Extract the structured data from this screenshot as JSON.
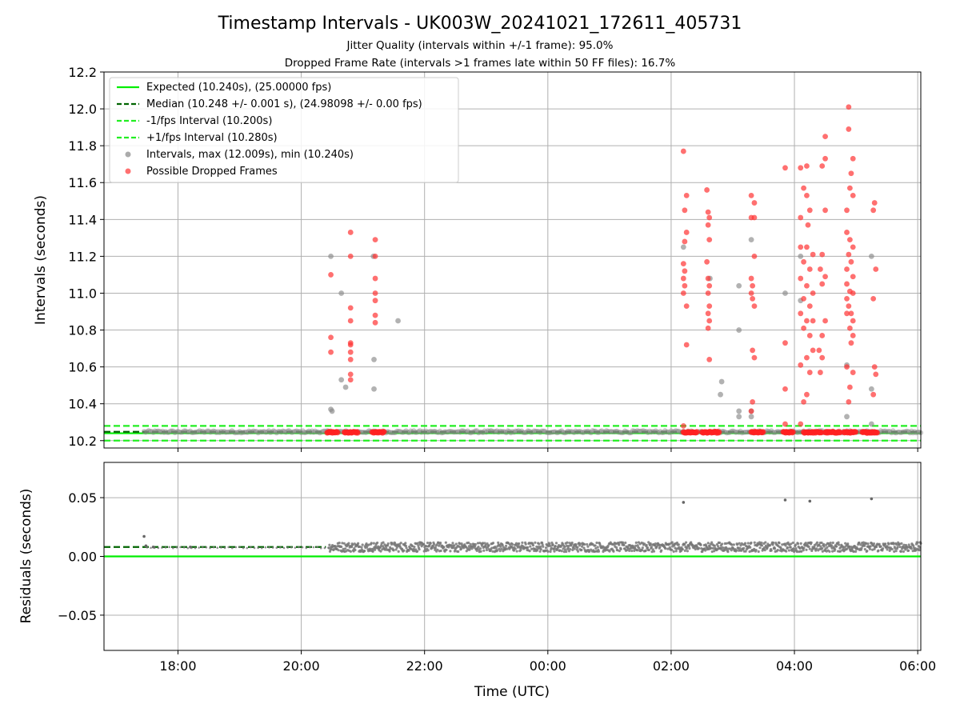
{
  "figure": {
    "title": "Timestamp Intervals - UK003W_20241021_172611_405731",
    "subtitle1": "Jitter Quality (intervals within +/-1 frame): 95.0%",
    "subtitle2": "Dropped Frame Rate (intervals >1 frames late within 50 FF files): 16.7%",
    "xlabel": "Time (UTC)"
  },
  "chart_data": [
    {
      "type": "scatter",
      "ylabel": "Intervals (seconds)",
      "ylim": [
        10.16,
        12.2
      ],
      "xlim_hours": [
        16.8,
        30.05
      ],
      "yticks": [
        {
          "v": 10.2,
          "label": "10.2"
        },
        {
          "v": 10.4,
          "label": "10.4"
        },
        {
          "v": 10.6,
          "label": "10.6"
        },
        {
          "v": 10.8,
          "label": "10.8"
        },
        {
          "v": 11.0,
          "label": "11.0"
        },
        {
          "v": 11.2,
          "label": "11.2"
        },
        {
          "v": 11.4,
          "label": "11.4"
        },
        {
          "v": 11.6,
          "label": "11.6"
        },
        {
          "v": 11.8,
          "label": "11.8"
        },
        {
          "v": 12.0,
          "label": "12.0"
        },
        {
          "v": 12.2,
          "label": "12.2"
        }
      ],
      "grid": true,
      "legend_position": "top-left",
      "lines": [
        {
          "name": "Expected (10.240s), (25.00000 fps)",
          "y": 10.24,
          "color": "#00ee00",
          "dash": "solid"
        },
        {
          "name": "Median (10.248 +/- 0.001 s), (24.98098 +/- 0.00 fps)",
          "y": 10.248,
          "color": "#006400",
          "dash": "dashed"
        },
        {
          "name": "-1/fps Interval (10.200s)",
          "y": 10.2,
          "color": "#22ee22",
          "dash": "dashed"
        },
        {
          "name": "+1/fps Interval (10.280s)",
          "y": 10.28,
          "color": "#22ee22",
          "dash": "dashed"
        }
      ],
      "series": [
        {
          "name": "Intervals, max (12.009s), min (10.240s)",
          "color": "#888888",
          "points": [
            [
              20.48,
              11.2
            ],
            [
              20.48,
              10.37
            ],
            [
              20.5,
              10.36
            ],
            [
              20.65,
              11.0
            ],
            [
              20.65,
              10.53
            ],
            [
              20.72,
              10.49
            ],
            [
              21.17,
              11.2
            ],
            [
              21.18,
              10.64
            ],
            [
              21.18,
              10.48
            ],
            [
              21.57,
              10.85
            ],
            [
              26.2,
              11.25
            ],
            [
              26.63,
              11.08
            ],
            [
              26.82,
              10.52
            ],
            [
              26.8,
              10.45
            ],
            [
              27.1,
              11.04
            ],
            [
              27.1,
              10.8
            ],
            [
              27.1,
              10.36
            ],
            [
              27.1,
              10.33
            ],
            [
              27.3,
              11.29
            ],
            [
              27.3,
              10.36
            ],
            [
              27.3,
              10.33
            ],
            [
              27.85,
              11.0
            ],
            [
              28.1,
              11.2
            ],
            [
              28.1,
              10.96
            ],
            [
              28.85,
              10.61
            ],
            [
              28.85,
              10.33
            ],
            [
              29.25,
              11.2
            ],
            [
              29.25,
              10.48
            ],
            [
              29.25,
              10.29
            ]
          ]
        },
        {
          "name": "Possible Dropped Frames",
          "color": "#ff3333",
          "points": [
            [
              20.48,
              11.1
            ],
            [
              20.48,
              10.76
            ],
            [
              20.48,
              10.68
            ],
            [
              20.8,
              11.33
            ],
            [
              20.8,
              11.2
            ],
            [
              20.8,
              10.92
            ],
            [
              20.8,
              10.85
            ],
            [
              20.8,
              10.73
            ],
            [
              20.8,
              10.72
            ],
            [
              20.8,
              10.68
            ],
            [
              20.8,
              10.64
            ],
            [
              20.8,
              10.56
            ],
            [
              20.8,
              10.53
            ],
            [
              21.2,
              11.29
            ],
            [
              21.2,
              11.2
            ],
            [
              21.2,
              11.08
            ],
            [
              21.2,
              11.0
            ],
            [
              21.2,
              10.96
            ],
            [
              21.2,
              10.88
            ],
            [
              21.2,
              10.84
            ],
            [
              26.2,
              11.77
            ],
            [
              26.25,
              11.53
            ],
            [
              26.22,
              11.45
            ],
            [
              26.25,
              11.33
            ],
            [
              26.22,
              11.28
            ],
            [
              26.2,
              11.16
            ],
            [
              26.22,
              11.12
            ],
            [
              26.2,
              11.08
            ],
            [
              26.22,
              11.04
            ],
            [
              26.2,
              11.0
            ],
            [
              26.25,
              10.93
            ],
            [
              26.25,
              10.72
            ],
            [
              26.2,
              10.28
            ],
            [
              26.58,
              11.56
            ],
            [
              26.6,
              11.44
            ],
            [
              26.62,
              11.41
            ],
            [
              26.6,
              11.37
            ],
            [
              26.62,
              11.29
            ],
            [
              26.58,
              11.17
            ],
            [
              26.6,
              11.08
            ],
            [
              26.62,
              11.04
            ],
            [
              26.6,
              11.0
            ],
            [
              26.62,
              10.93
            ],
            [
              26.6,
              10.89
            ],
            [
              26.62,
              10.85
            ],
            [
              26.6,
              10.81
            ],
            [
              26.62,
              10.64
            ],
            [
              27.3,
              11.53
            ],
            [
              27.35,
              11.49
            ],
            [
              27.3,
              11.41
            ],
            [
              27.35,
              11.41
            ],
            [
              27.35,
              11.2
            ],
            [
              27.3,
              11.08
            ],
            [
              27.32,
              11.04
            ],
            [
              27.3,
              11.0
            ],
            [
              27.32,
              10.97
            ],
            [
              27.35,
              10.93
            ],
            [
              27.32,
              10.69
            ],
            [
              27.35,
              10.65
            ],
            [
              27.32,
              10.41
            ],
            [
              27.3,
              10.36
            ],
            [
              27.85,
              11.68
            ],
            [
              27.85,
              10.73
            ],
            [
              27.85,
              10.48
            ],
            [
              27.85,
              10.29
            ],
            [
              28.1,
              11.68
            ],
            [
              28.2,
              11.69
            ],
            [
              28.15,
              11.57
            ],
            [
              28.2,
              11.53
            ],
            [
              28.25,
              11.45
            ],
            [
              28.1,
              11.41
            ],
            [
              28.22,
              11.37
            ],
            [
              28.1,
              11.25
            ],
            [
              28.2,
              11.25
            ],
            [
              28.3,
              11.21
            ],
            [
              28.15,
              11.17
            ],
            [
              28.25,
              11.13
            ],
            [
              28.1,
              11.08
            ],
            [
              28.2,
              11.04
            ],
            [
              28.3,
              11.0
            ],
            [
              28.15,
              10.97
            ],
            [
              28.25,
              10.93
            ],
            [
              28.1,
              10.89
            ],
            [
              28.2,
              10.85
            ],
            [
              28.3,
              10.85
            ],
            [
              28.15,
              10.81
            ],
            [
              28.25,
              10.77
            ],
            [
              28.3,
              10.69
            ],
            [
              28.2,
              10.65
            ],
            [
              28.1,
              10.61
            ],
            [
              28.25,
              10.57
            ],
            [
              28.2,
              10.45
            ],
            [
              28.15,
              10.41
            ],
            [
              28.1,
              10.29
            ],
            [
              28.5,
              11.85
            ],
            [
              28.5,
              11.73
            ],
            [
              28.45,
              11.69
            ],
            [
              28.5,
              11.45
            ],
            [
              28.45,
              11.21
            ],
            [
              28.42,
              11.13
            ],
            [
              28.5,
              11.09
            ],
            [
              28.45,
              11.05
            ],
            [
              28.5,
              10.85
            ],
            [
              28.45,
              10.77
            ],
            [
              28.4,
              10.69
            ],
            [
              28.45,
              10.65
            ],
            [
              28.42,
              10.57
            ],
            [
              28.85,
              11.45
            ],
            [
              28.85,
              11.13
            ],
            [
              28.85,
              11.05
            ],
            [
              28.85,
              10.97
            ],
            [
              28.85,
              10.89
            ],
            [
              28.85,
              10.6
            ],
            [
              28.88,
              12.01
            ],
            [
              28.88,
              11.89
            ],
            [
              28.95,
              11.73
            ],
            [
              28.92,
              11.65
            ],
            [
              28.9,
              11.57
            ],
            [
              28.95,
              11.53
            ],
            [
              28.85,
              11.33
            ],
            [
              28.9,
              11.29
            ],
            [
              28.95,
              11.25
            ],
            [
              28.88,
              11.21
            ],
            [
              28.92,
              11.17
            ],
            [
              28.95,
              11.09
            ],
            [
              28.9,
              11.01
            ],
            [
              28.95,
              11.0
            ],
            [
              28.88,
              10.93
            ],
            [
              28.92,
              10.89
            ],
            [
              28.95,
              10.85
            ],
            [
              28.9,
              10.81
            ],
            [
              28.95,
              10.77
            ],
            [
              28.92,
              10.73
            ],
            [
              28.95,
              10.57
            ],
            [
              28.9,
              10.49
            ],
            [
              28.88,
              10.41
            ],
            [
              29.3,
              11.49
            ],
            [
              29.28,
              11.45
            ],
            [
              29.32,
              11.13
            ],
            [
              29.28,
              10.97
            ],
            [
              29.3,
              10.6
            ],
            [
              29.32,
              10.56
            ],
            [
              29.28,
              10.45
            ]
          ],
          "baseline": {
            "y": 10.245,
            "ranges_hours": [
              [
                20.42,
                20.6
              ],
              [
                20.7,
                20.92
              ],
              [
                21.15,
                21.35
              ],
              [
                26.2,
                26.42
              ],
              [
                26.5,
                26.78
              ],
              [
                27.3,
                27.5
              ],
              [
                27.82,
                27.98
              ],
              [
                28.15,
                28.45
              ],
              [
                28.5,
                28.75
              ],
              [
                28.8,
                29.0
              ],
              [
                29.1,
                29.35
              ]
            ]
          }
        }
      ]
    },
    {
      "type": "scatter",
      "ylabel": "Residuals (seconds)",
      "ylim": [
        -0.08,
        0.08
      ],
      "xlim_hours": [
        16.8,
        30.05
      ],
      "yticks": [
        {
          "v": 0.05,
          "label": "0.05"
        },
        {
          "v": 0.0,
          "label": "0.00"
        },
        {
          "v": -0.05,
          "label": "−0.05"
        }
      ],
      "xticks": [
        {
          "h": 18,
          "label": "18:00"
        },
        {
          "h": 20,
          "label": "20:00"
        },
        {
          "h": 22,
          "label": "22:00"
        },
        {
          "h": 24,
          "label": "00:00"
        },
        {
          "h": 26,
          "label": "02:00"
        },
        {
          "h": 28,
          "label": "04:00"
        },
        {
          "h": 30,
          "label": "06:00"
        }
      ],
      "grid": true,
      "zero_line": {
        "y": 0.0,
        "color": "#00ee00"
      },
      "median_line": {
        "y": 0.008,
        "color": "#006400",
        "dash": "dashed",
        "end_hours": 20.4
      },
      "dense_band": {
        "start_hours": 20.45,
        "end_hours": 30.05,
        "y_min": 0.004,
        "y_max": 0.012,
        "color": "#777777"
      },
      "points": [
        [
          17.45,
          0.017
        ],
        [
          17.48,
          0.009
        ],
        [
          17.6,
          0.008
        ],
        [
          18.2,
          0.008
        ],
        [
          26.2,
          0.046
        ],
        [
          27.85,
          0.048
        ],
        [
          28.25,
          0.047
        ],
        [
          29.25,
          0.049
        ]
      ]
    }
  ]
}
